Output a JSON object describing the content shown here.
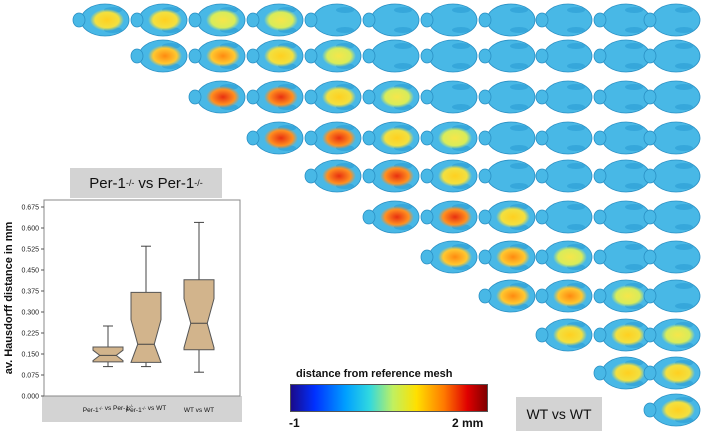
{
  "matrix_labels": {
    "top_left": "Per-1",
    "top_left_suffix": "vs Per-1",
    "superscript": "-/-",
    "bottom_right": "WT vs WT"
  },
  "colorbar": {
    "title": "distance from reference mesh",
    "min_label": "-1",
    "max_label": "2 mm",
    "colors": [
      "#1a0a8a",
      "#0030ff",
      "#00a0ff",
      "#30d8e0",
      "#c0f060",
      "#ffe000",
      "#ff7a00",
      "#e00000",
      "#800000"
    ]
  },
  "chart_data": {
    "type": "box",
    "ylabel": "av. Hausdorff distance in mm",
    "yticks": [
      "0.000",
      "0.075",
      "0.150",
      "0.225",
      "0.300",
      "0.375",
      "0.450",
      "0.525",
      "0.600",
      "0.675"
    ],
    "ylim": [
      0,
      0.7
    ],
    "categories": [
      {
        "name": "Per-1",
        "sup": "-/-",
        "mid": " vs Per-1",
        "sup2": "-/-",
        "tail": ""
      },
      {
        "name": "Per-1",
        "sup": "-/-",
        "mid": " vs WT",
        "sup2": "",
        "tail": ""
      },
      {
        "name": "WT vs WT",
        "sup": "",
        "mid": "",
        "sup2": "",
        "tail": ""
      }
    ],
    "boxes": [
      {
        "min": 0.105,
        "q1": 0.122,
        "median": 0.145,
        "q3": 0.175,
        "max": 0.25
      },
      {
        "min": 0.105,
        "q1": 0.12,
        "median": 0.185,
        "q3": 0.37,
        "max": 0.535
      },
      {
        "min": 0.085,
        "q1": 0.165,
        "median": 0.26,
        "q3": 0.415,
        "max": 0.62
      }
    ],
    "box_color": "#d2b48c",
    "grid": false
  }
}
